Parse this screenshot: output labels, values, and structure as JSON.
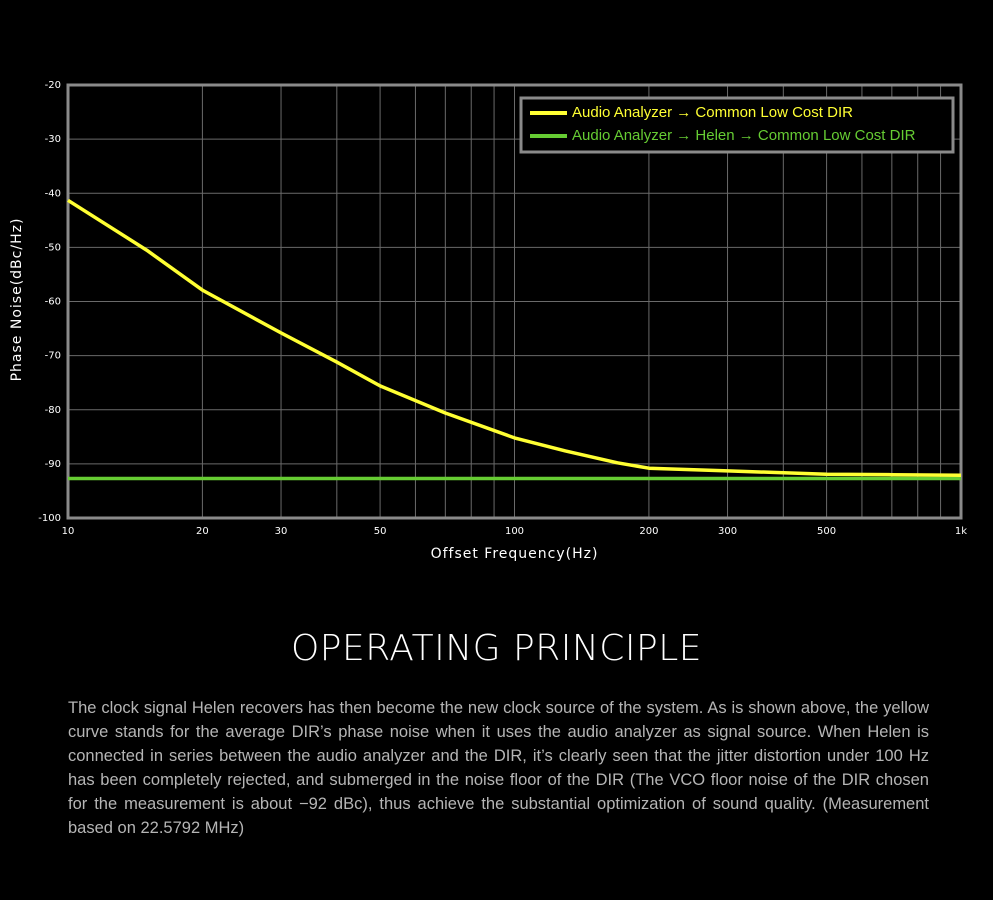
{
  "chart_data": {
    "type": "line",
    "xlabel": "Offset Frequency(Hz)",
    "ylabel": "Phase Noise(dBc/Hz)",
    "xscale": "log",
    "xlim": [
      10,
      1000
    ],
    "ylim": [
      -100,
      -20
    ],
    "xticks": [
      10,
      20,
      30,
      50,
      100,
      200,
      300,
      500,
      {
        "value": 1000,
        "label": "1k"
      }
    ],
    "minor_xticks": [
      40,
      60,
      70,
      80,
      90,
      400,
      600,
      700,
      800,
      900
    ],
    "yticks": [
      -100,
      -90,
      -80,
      -70,
      -60,
      -50,
      -40,
      -30,
      -20
    ],
    "grid": true,
    "legend": "upper right",
    "series": [
      {
        "name": "Audio Analyzer → Common Low Cost DIR",
        "color": "#ffff33",
        "x": [
          10,
          15,
          20,
          30,
          40,
          50,
          70,
          100,
          130,
          170,
          200,
          300,
          500,
          700,
          1000
        ],
        "values": [
          -41.3,
          -50.5,
          -57.9,
          -65.8,
          -71.2,
          -75.6,
          -80.6,
          -85.2,
          -87.6,
          -89.8,
          -90.8,
          -91.3,
          -91.9,
          -92,
          -92.1
        ]
      },
      {
        "name": "Audio Analyzer → Helen → Common Low Cost DIR",
        "color": "#66cc33",
        "x": [
          10,
          1000
        ],
        "values": [
          -92.7,
          -92.7
        ]
      }
    ]
  },
  "section": {
    "title": "OPERATING PRINCIPLE",
    "text": "The clock signal Helen recovers has then become the new clock source of the system. As is shown above, the yellow curve stands for the average DIR’s phase noise when it uses the audio analyzer as signal source. When Helen is connected in series between the audio analyzer and the DIR, it’s clearly seen that the jitter distortion under 100 Hz has been completely rejected, and submerged in the noise floor of the DIR (The VCO floor noise of the DIR chosen for the measurement is about −92 dBc), thus achieve the substantial optimization of sound quality. (Measurement based on 22.5792 MHz)"
  }
}
